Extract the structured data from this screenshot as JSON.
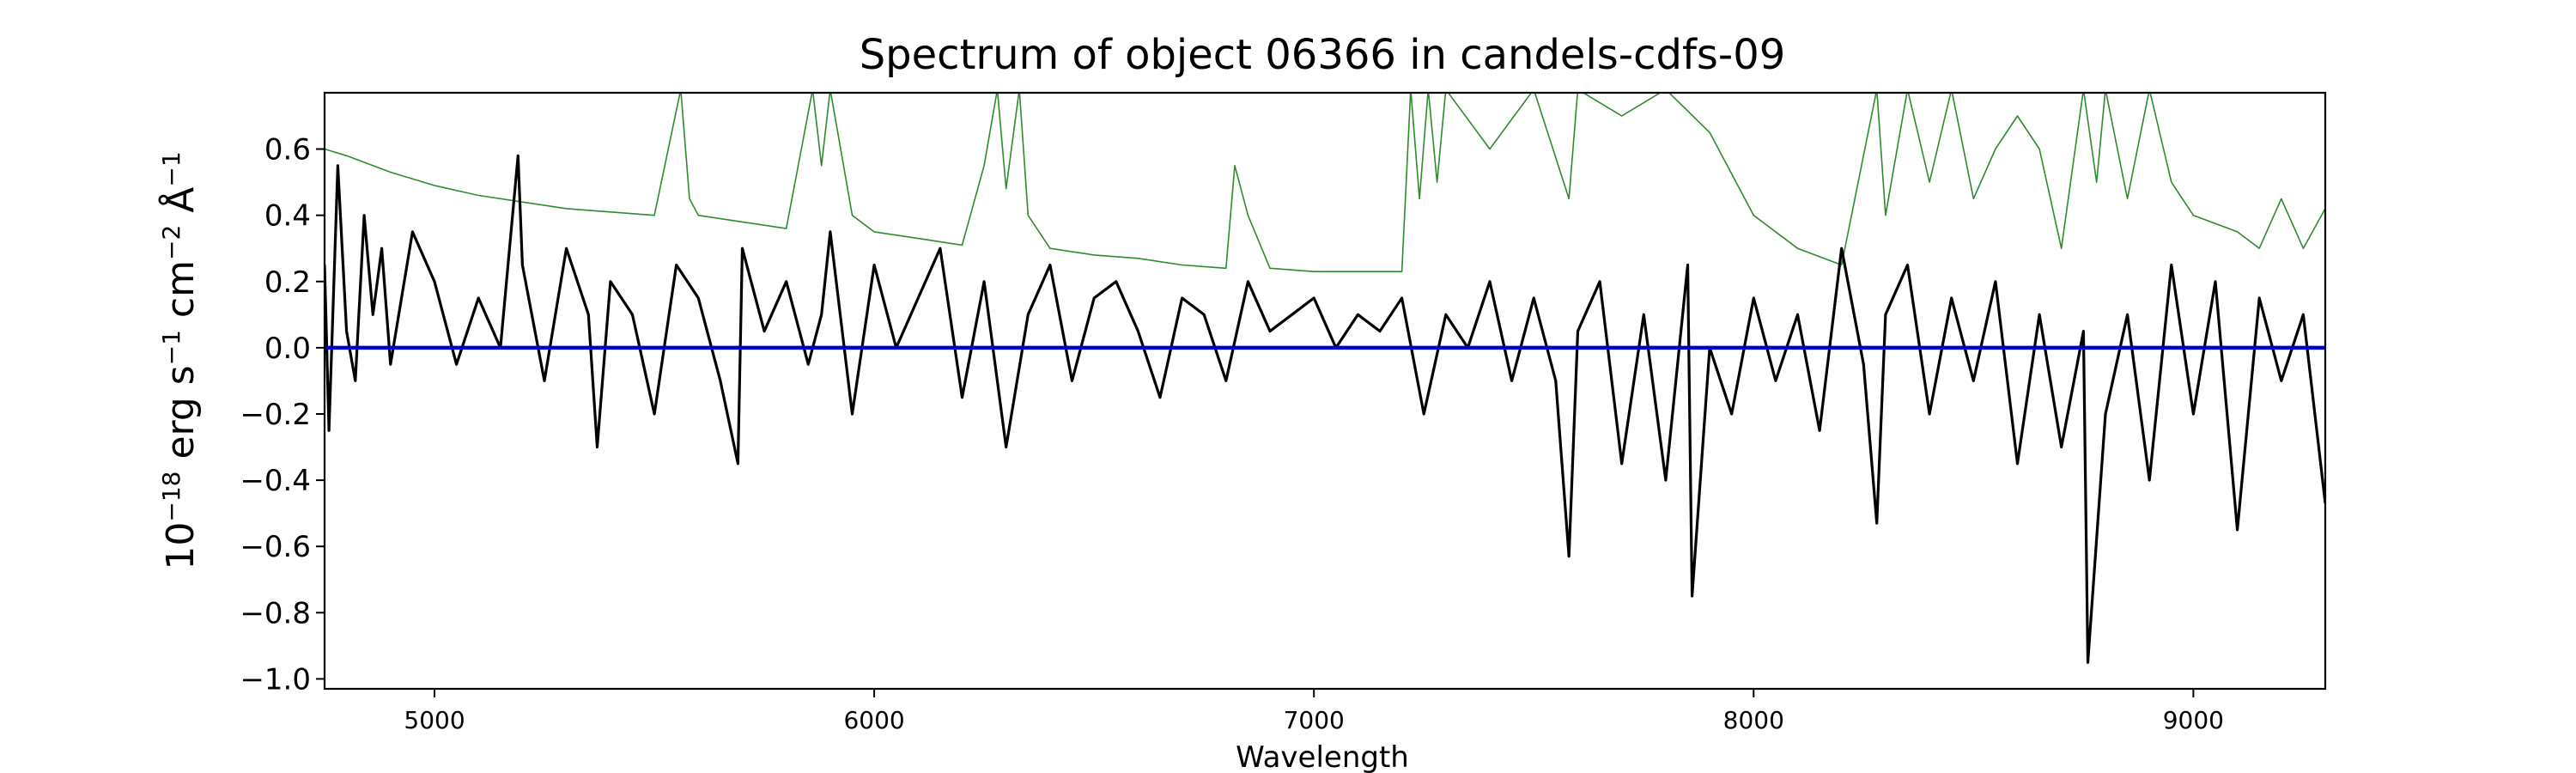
{
  "chart_data": {
    "type": "line",
    "title": "Spectrum of object 06366 in candels-cdfs-09",
    "xlabel": "Wavelength",
    "ylabel_parts": [
      "10",
      "−18",
      " erg s",
      "−1",
      " cm",
      "−2",
      " Å",
      "−1"
    ],
    "xlim": [
      4750,
      9300
    ],
    "ylim": [
      -1.03,
      0.77
    ],
    "xticks": [
      5000,
      6000,
      7000,
      8000,
      9000
    ],
    "xtick_labels": [
      "5000",
      "6000",
      "7000",
      "8000",
      "9000"
    ],
    "yticks": [
      0.6,
      0.4,
      0.2,
      0.0,
      -0.2,
      -0.4,
      -0.6,
      -0.8,
      -1.0
    ],
    "ytick_labels": [
      "0.6",
      "0.4",
      "0.2",
      "0.0",
      "−0.2",
      "−0.4",
      "−0.6",
      "−0.8",
      "−1.0"
    ],
    "grid": false,
    "series": [
      {
        "role": "error",
        "color": "#2e8b2e",
        "x": [
          4750,
          4800,
          4900,
          5000,
          5100,
          5200,
          5300,
          5400,
          5500,
          5560,
          5580,
          5600,
          5700,
          5800,
          5860,
          5880,
          5900,
          5950,
          6000,
          6100,
          6200,
          6250,
          6280,
          6300,
          6330,
          6350,
          6400,
          6500,
          6600,
          6700,
          6800,
          6820,
          6850,
          6900,
          7000,
          7100,
          7200,
          7220,
          7240,
          7260,
          7280,
          7300,
          7400,
          7500,
          7580,
          7600,
          7700,
          7800,
          7900,
          8000,
          8100,
          8200,
          8280,
          8300,
          8350,
          8400,
          8450,
          8500,
          8550,
          8600,
          8650,
          8700,
          8750,
          8780,
          8800,
          8850,
          8900,
          8950,
          9000,
          9100,
          9150,
          9200,
          9250,
          9300
        ],
        "y": [
          0.6,
          0.58,
          0.53,
          0.49,
          0.46,
          0.44,
          0.42,
          0.41,
          0.4,
          0.78,
          0.45,
          0.4,
          0.38,
          0.36,
          0.78,
          0.55,
          0.78,
          0.4,
          0.35,
          0.33,
          0.31,
          0.55,
          0.78,
          0.48,
          0.78,
          0.4,
          0.3,
          0.28,
          0.27,
          0.25,
          0.24,
          0.55,
          0.4,
          0.24,
          0.23,
          0.23,
          0.23,
          0.78,
          0.45,
          0.78,
          0.5,
          0.78,
          0.6,
          0.78,
          0.45,
          0.78,
          0.7,
          0.78,
          0.65,
          0.4,
          0.3,
          0.25,
          0.78,
          0.4,
          0.78,
          0.5,
          0.78,
          0.45,
          0.6,
          0.7,
          0.6,
          0.3,
          0.78,
          0.5,
          0.78,
          0.45,
          0.78,
          0.5,
          0.4,
          0.35,
          0.3,
          0.45,
          0.3,
          0.42
        ]
      },
      {
        "role": "flux",
        "color": "#000000",
        "x": [
          4750,
          4760,
          4780,
          4800,
          4820,
          4840,
          4860,
          4880,
          4900,
          4950,
          5000,
          5050,
          5100,
          5150,
          5190,
          5200,
          5250,
          5300,
          5350,
          5370,
          5400,
          5450,
          5500,
          5550,
          5600,
          5650,
          5690,
          5700,
          5750,
          5800,
          5850,
          5880,
          5900,
          5950,
          6000,
          6050,
          6100,
          6150,
          6200,
          6250,
          6300,
          6350,
          6400,
          6450,
          6500,
          6550,
          6600,
          6650,
          6700,
          6750,
          6800,
          6850,
          6900,
          6950,
          7000,
          7050,
          7100,
          7150,
          7200,
          7250,
          7300,
          7350,
          7400,
          7450,
          7500,
          7550,
          7580,
          7600,
          7650,
          7700,
          7750,
          7800,
          7850,
          7860,
          7900,
          7950,
          8000,
          8050,
          8100,
          8150,
          8200,
          8250,
          8280,
          8300,
          8350,
          8400,
          8450,
          8500,
          8550,
          8600,
          8650,
          8700,
          8750,
          8760,
          8800,
          8850,
          8900,
          8950,
          9000,
          9050,
          9100,
          9150,
          9200,
          9250,
          9300
        ],
        "y": [
          0.25,
          -0.25,
          0.55,
          0.05,
          -0.1,
          0.4,
          0.1,
          0.3,
          -0.05,
          0.35,
          0.2,
          -0.05,
          0.15,
          0.0,
          0.58,
          0.25,
          -0.1,
          0.3,
          0.1,
          -0.3,
          0.2,
          0.1,
          -0.2,
          0.25,
          0.15,
          -0.1,
          -0.35,
          0.3,
          0.05,
          0.2,
          -0.05,
          0.1,
          0.35,
          -0.2,
          0.25,
          0.0,
          0.15,
          0.3,
          -0.15,
          0.2,
          -0.3,
          0.1,
          0.25,
          -0.1,
          0.15,
          0.2,
          0.05,
          -0.15,
          0.15,
          0.1,
          -0.1,
          0.2,
          0.05,
          0.1,
          0.15,
          0.0,
          0.1,
          0.05,
          0.15,
          -0.2,
          0.1,
          0.0,
          0.2,
          -0.1,
          0.15,
          -0.1,
          -0.63,
          0.05,
          0.2,
          -0.35,
          0.1,
          -0.4,
          0.25,
          -0.75,
          0.0,
          -0.2,
          0.15,
          -0.1,
          0.1,
          -0.25,
          0.3,
          -0.05,
          -0.53,
          0.1,
          0.25,
          -0.2,
          0.15,
          -0.1,
          0.2,
          -0.35,
          0.1,
          -0.3,
          0.05,
          -0.95,
          -0.2,
          0.1,
          -0.4,
          0.25,
          -0.2,
          0.2,
          -0.55,
          0.15,
          -0.1,
          0.1,
          -0.47
        ]
      },
      {
        "role": "zero",
        "color": "#0000cc",
        "x": [
          4750,
          9300
        ],
        "y": [
          0.0,
          0.0
        ]
      }
    ]
  }
}
